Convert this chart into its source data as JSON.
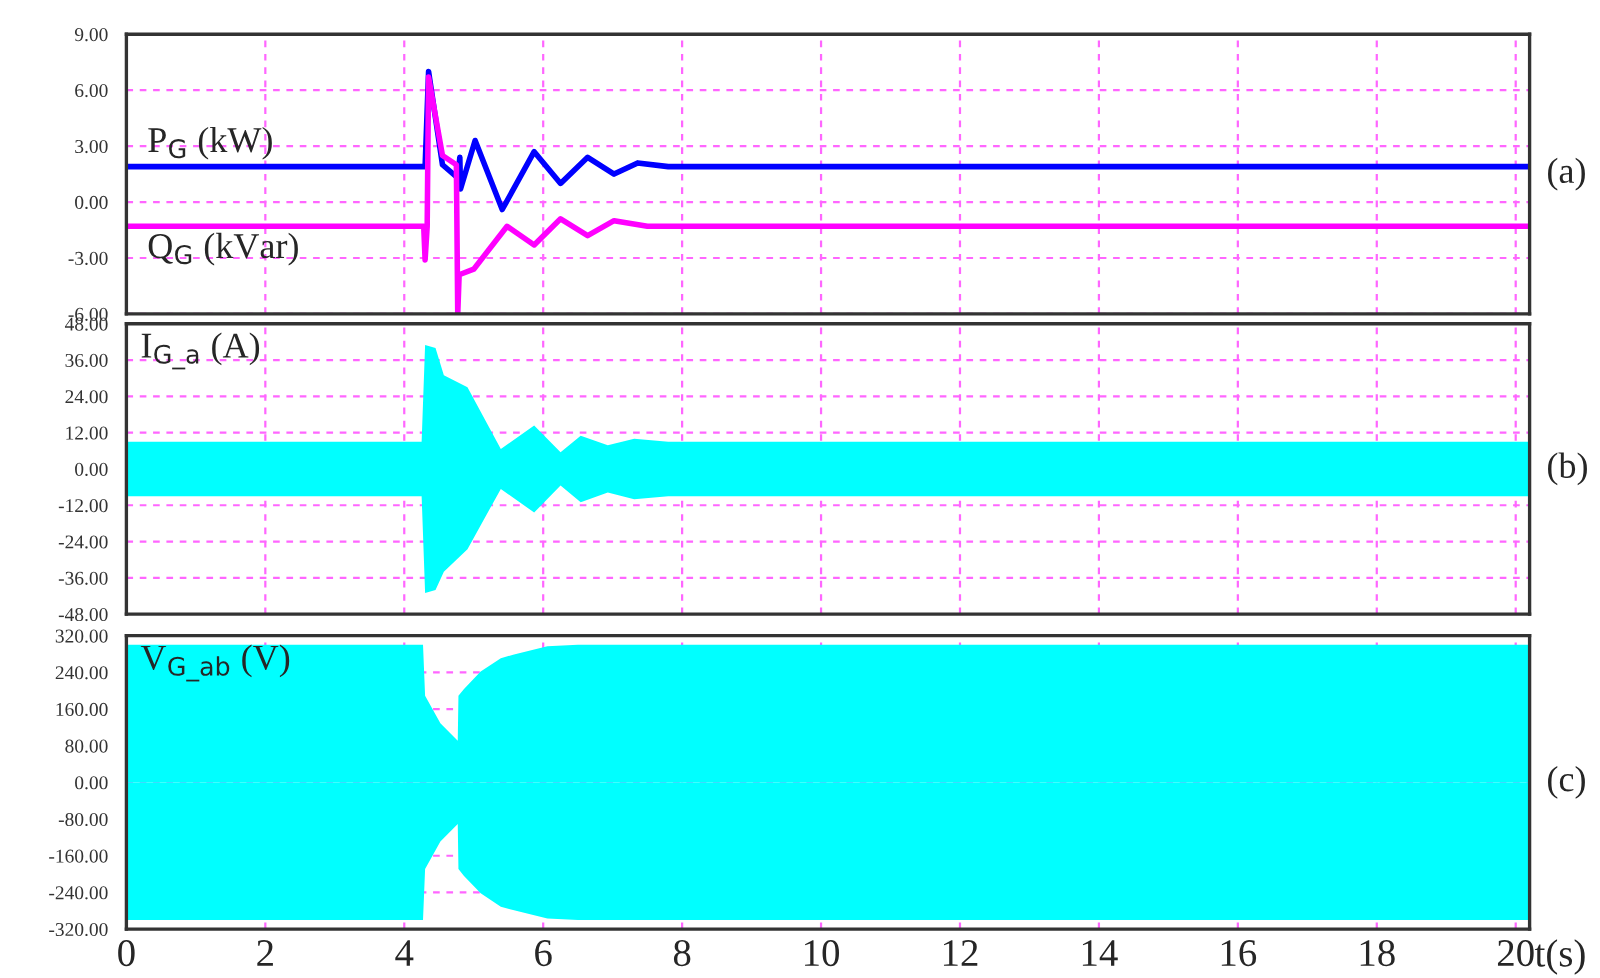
{
  "chart_data": [
    {
      "type": "line",
      "xlim": [
        0,
        20.2
      ],
      "xticks": [
        0,
        2,
        4,
        6,
        8,
        10,
        12,
        14,
        16,
        18,
        20
      ],
      "ylim": [
        -6,
        9
      ],
      "yticks": [
        {
          "value": -6,
          "label": "-6.00"
        },
        {
          "value": -3,
          "label": "-3.00"
        },
        {
          "value": 0,
          "label": "0.00"
        },
        {
          "value": 3,
          "label": "3.00"
        },
        {
          "value": 6,
          "label": "6.00"
        },
        {
          "value": 9,
          "label": "9.00"
        }
      ],
      "grid": true,
      "legend": false,
      "tick_labels": "y",
      "annotations": [
        "(a)"
      ],
      "series": [
        {
          "name": "P$_{G}$ (kW)",
          "color": "#0000ff",
          "x": [
            0,
            4.3,
            4.35,
            4.55,
            4.77,
            4.8,
            4.81,
            5.02,
            5.41,
            5.87,
            6.25,
            6.64,
            7.02,
            7.36,
            7.8,
            20.2
          ],
          "values": [
            1.9,
            1.9,
            7.0,
            2.0,
            1.3,
            2.4,
            0.7,
            3.3,
            -0.4,
            2.7,
            1.0,
            2.4,
            1.5,
            2.1,
            1.9,
            1.9
          ]
        },
        {
          "name": "Q$_{G}$ (kVar)",
          "color": "#ff00ff",
          "x": [
            0,
            4.28,
            4.3,
            4.33,
            4.35,
            4.55,
            4.75,
            4.77,
            4.79,
            5.0,
            5.48,
            5.87,
            6.25,
            6.64,
            7.02,
            7.5,
            20.2
          ],
          "values": [
            -1.3,
            -1.3,
            -3.1,
            -1.3,
            6.7,
            2.5,
            2.0,
            -6.0,
            -3.9,
            -3.6,
            -1.3,
            -2.3,
            -0.9,
            -1.8,
            -1.0,
            -1.3,
            -1.3
          ]
        }
      ]
    },
    {
      "type": "area",
      "xlim": [
        0,
        20.2
      ],
      "xticks": [
        0,
        2,
        4,
        6,
        8,
        10,
        12,
        14,
        16,
        18,
        20
      ],
      "ylim": [
        -48,
        48
      ],
      "yticks": [
        {
          "value": -48,
          "label": "-48.00"
        },
        {
          "value": -36,
          "label": "-36.00"
        },
        {
          "value": -24,
          "label": "-24.00"
        },
        {
          "value": -12,
          "label": "-12.00"
        },
        {
          "value": 0,
          "label": "0.00"
        },
        {
          "value": 12,
          "label": "12.00"
        },
        {
          "value": 24,
          "label": "24.00"
        },
        {
          "value": 36,
          "label": "36.00"
        },
        {
          "value": 48,
          "label": "48.00"
        }
      ],
      "grid": true,
      "legend": false,
      "tick_labels": "y",
      "annotations": [
        "(b)"
      ],
      "series": [
        {
          "name": "I$_{G_a}$ (A)",
          "color": "#00ffff",
          "x": [
            0,
            4.25,
            4.3,
            4.45,
            4.57,
            4.91,
            5.39,
            5.87,
            6.25,
            6.54,
            6.93,
            7.31,
            7.8,
            20.2
          ],
          "values": [
            9,
            9,
            41,
            40,
            31,
            27,
            6.6,
            14.4,
            5.5,
            11,
            7.8,
            10,
            9,
            9
          ]
        },
        {
          "color": "#00ffff",
          "x": [
            0,
            4.25,
            4.3,
            4.45,
            4.57,
            4.91,
            5.39,
            5.87,
            6.25,
            6.54,
            6.93,
            7.31,
            7.8,
            20.2
          ],
          "values": [
            -9,
            -9,
            -41,
            -40,
            -34,
            -26.5,
            -6.6,
            -14.4,
            -5.5,
            -11,
            -7.8,
            -10,
            -9,
            -9
          ]
        }
      ]
    },
    {
      "type": "area",
      "xlim": [
        0,
        20.2
      ],
      "xticks": [
        0,
        2,
        4,
        6,
        8,
        10,
        12,
        14,
        16,
        18,
        20
      ],
      "ylim": [
        -320,
        320
      ],
      "yticks": [
        {
          "value": -320,
          "label": "-320.00"
        },
        {
          "value": -240,
          "label": "-240.00"
        },
        {
          "value": -160,
          "label": "-160.00"
        },
        {
          "value": -80,
          "label": "-80.00"
        },
        {
          "value": 0,
          "label": "0.00"
        },
        {
          "value": 80,
          "label": "80.00"
        },
        {
          "value": 160,
          "label": "160.00"
        },
        {
          "value": 240,
          "label": "240.00"
        },
        {
          "value": 320,
          "label": "320.00"
        }
      ],
      "grid": true,
      "legend": false,
      "xlabel": "t(s)",
      "annotations": [
        "(c)"
      ],
      "series": [
        {
          "name": "V$_{G_ab}$ (V)",
          "color": "#00ffff",
          "x": [
            0,
            4.25,
            4.27,
            4.3,
            4.52,
            4.77,
            4.78,
            4.86,
            5.1,
            5.39,
            5.58,
            6.06,
            6.5,
            20.2
          ],
          "values": [
            300,
            300,
            300,
            189,
            129,
            91,
            189,
            204,
            242,
            271,
            279,
            297,
            300,
            300
          ]
        },
        {
          "color": "#00ffff",
          "x": [
            0,
            4.25,
            4.27,
            4.3,
            4.52,
            4.77,
            4.78,
            4.86,
            5.1,
            5.39,
            5.58,
            6.06,
            6.5,
            20.2
          ],
          "values": [
            -300,
            -300,
            -300,
            -189,
            -129,
            -91,
            -189,
            -204,
            -242,
            -271,
            -279,
            -297,
            -300,
            -300
          ]
        }
      ]
    }
  ]
}
